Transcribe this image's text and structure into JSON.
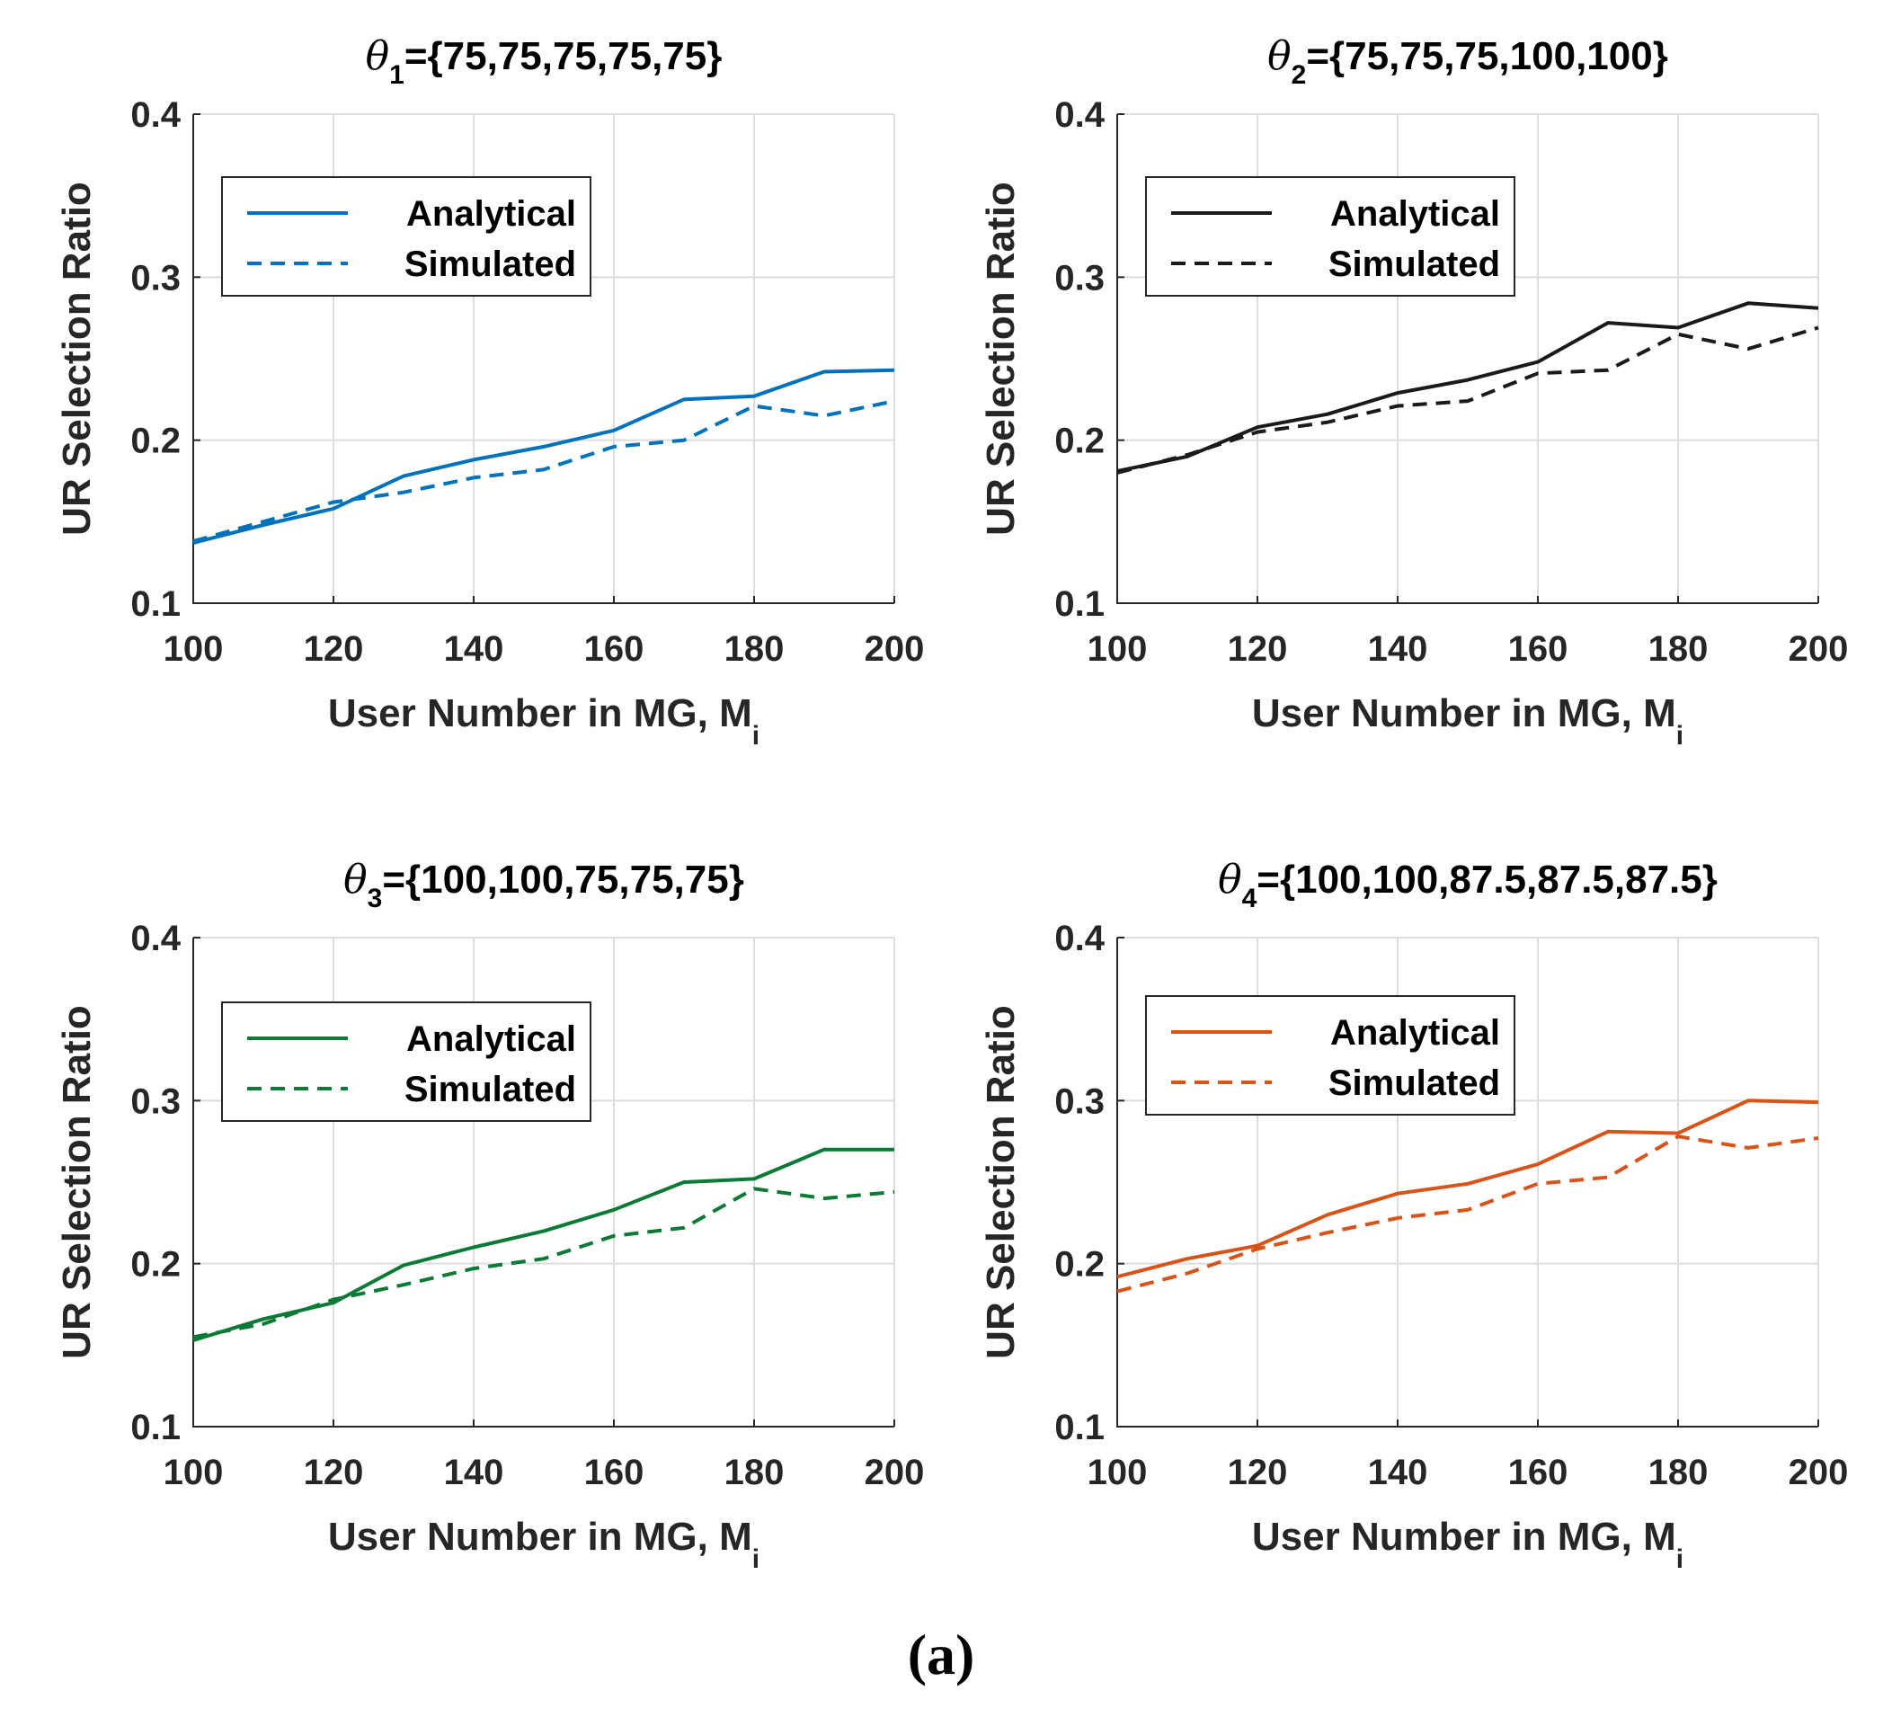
{
  "caption": "(a)",
  "chart_data": [
    {
      "type": "line",
      "title": {
        "sym": "θ",
        "sub": "1",
        "rest": "={75,75,75,75,75}"
      },
      "color": "#0072BD",
      "xlabel": {
        "main": "User Number in MG, M",
        "sub": "i"
      },
      "ylabel": "UR Selection Ratio",
      "xlim": [
        100,
        200
      ],
      "ylim": [
        0.1,
        0.4
      ],
      "x_ticks": [
        "100",
        "120",
        "140",
        "160",
        "180",
        "200"
      ],
      "y_ticks": [
        "0.1",
        "0.2",
        "0.3",
        "0.4"
      ],
      "grid": true,
      "legend_position": "top-left",
      "x": [
        100,
        110,
        120,
        130,
        140,
        150,
        160,
        170,
        180,
        190,
        200
      ],
      "series": [
        {
          "name": "Analytical",
          "style": "solid",
          "values": [
            0.137,
            0.148,
            0.158,
            0.178,
            0.188,
            0.196,
            0.206,
            0.225,
            0.227,
            0.242,
            0.243
          ]
        },
        {
          "name": "Simulated",
          "style": "dashed",
          "values": [
            0.138,
            0.15,
            0.162,
            0.168,
            0.177,
            0.182,
            0.196,
            0.2,
            0.221,
            0.215,
            0.224
          ]
        }
      ]
    },
    {
      "type": "line",
      "title": {
        "sym": "θ",
        "sub": "2",
        "rest": "={75,75,75,100,100}"
      },
      "color": "#1a1a1a",
      "xlabel": {
        "main": "User Number in MG, M",
        "sub": "i"
      },
      "ylabel": "UR Selection Ratio",
      "xlim": [
        100,
        200
      ],
      "ylim": [
        0.1,
        0.4
      ],
      "x_ticks": [
        "100",
        "120",
        "140",
        "160",
        "180",
        "200"
      ],
      "y_ticks": [
        "0.1",
        "0.2",
        "0.3",
        "0.4"
      ],
      "grid": true,
      "legend_position": "top-left",
      "x": [
        100,
        110,
        120,
        130,
        140,
        150,
        160,
        170,
        180,
        190,
        200
      ],
      "series": [
        {
          "name": "Analytical",
          "style": "solid",
          "values": [
            0.181,
            0.19,
            0.208,
            0.216,
            0.229,
            0.237,
            0.248,
            0.272,
            0.269,
            0.284,
            0.281
          ]
        },
        {
          "name": "Simulated",
          "style": "dashed",
          "values": [
            0.18,
            0.191,
            0.205,
            0.211,
            0.221,
            0.224,
            0.241,
            0.243,
            0.265,
            0.256,
            0.269
          ]
        }
      ]
    },
    {
      "type": "line",
      "title": {
        "sym": "θ",
        "sub": "3",
        "rest": "={100,100,75,75,75}"
      },
      "color": "#0B7A35",
      "xlabel": {
        "main": "User Number in MG, M",
        "sub": "i"
      },
      "ylabel": "UR Selection Ratio",
      "xlim": [
        100,
        200
      ],
      "ylim": [
        0.1,
        0.4
      ],
      "x_ticks": [
        "100",
        "120",
        "140",
        "160",
        "180",
        "200"
      ],
      "y_ticks": [
        "0.1",
        "0.2",
        "0.3",
        "0.4"
      ],
      "grid": true,
      "legend_position": "top-left",
      "x": [
        100,
        110,
        120,
        130,
        140,
        150,
        160,
        170,
        180,
        190,
        200
      ],
      "series": [
        {
          "name": "Analytical",
          "style": "solid",
          "values": [
            0.153,
            0.166,
            0.176,
            0.199,
            0.21,
            0.22,
            0.233,
            0.25,
            0.252,
            0.27,
            0.27
          ]
        },
        {
          "name": "Simulated",
          "style": "dashed",
          "values": [
            0.155,
            0.163,
            0.178,
            0.187,
            0.197,
            0.203,
            0.217,
            0.222,
            0.246,
            0.24,
            0.244
          ]
        }
      ]
    },
    {
      "type": "line",
      "title": {
        "sym": "θ",
        "sub": "4",
        "rest": "={100,100,87.5,87.5,87.5}"
      },
      "color": "#D95319",
      "xlabel": {
        "main": "User Number in MG, M",
        "sub": "i"
      },
      "ylabel": "UR Selection Ratio",
      "xlim": [
        100,
        200
      ],
      "ylim": [
        0.1,
        0.4
      ],
      "x_ticks": [
        "100",
        "120",
        "140",
        "160",
        "180",
        "200"
      ],
      "y_ticks": [
        "0.1",
        "0.2",
        "0.3",
        "0.4"
      ],
      "grid": true,
      "legend_position": "top-left",
      "x": [
        100,
        110,
        120,
        130,
        140,
        150,
        160,
        170,
        180,
        190,
        200
      ],
      "series": [
        {
          "name": "Analytical",
          "style": "solid",
          "values": [
            0.192,
            0.203,
            0.211,
            0.23,
            0.243,
            0.249,
            0.261,
            0.281,
            0.28,
            0.3,
            0.299
          ]
        },
        {
          "name": "Simulated",
          "style": "dashed",
          "values": [
            0.183,
            0.194,
            0.209,
            0.219,
            0.228,
            0.233,
            0.249,
            0.253,
            0.278,
            0.271,
            0.277
          ]
        }
      ]
    }
  ]
}
